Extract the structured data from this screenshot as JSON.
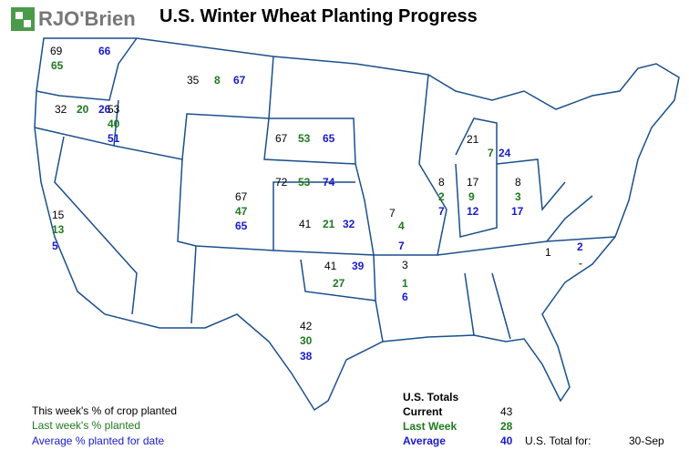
{
  "header": {
    "logo": "RJO'Brien",
    "title": "U.S. Winter Wheat Planting Progress"
  },
  "states": [
    {
      "current": 69,
      "last_week": 65,
      "average": 66
    },
    {
      "current": 32,
      "last_week": 20,
      "average": 26
    },
    {
      "current": 53,
      "last_week": 40,
      "average": 51
    },
    {
      "current": 35,
      "last_week": 8,
      "average": 67
    },
    {
      "current": 67,
      "last_week": 53,
      "average": 65
    },
    {
      "current": 72,
      "last_week": 53,
      "average": 74
    },
    {
      "current": 67,
      "last_week": 47,
      "average": 65
    },
    {
      "current": 41,
      "last_week": 21,
      "average": 32
    },
    {
      "current": 41,
      "last_week": 27,
      "average": 39
    },
    {
      "current": 42,
      "last_week": 30,
      "average": 38
    },
    {
      "current": 15,
      "last_week": 13,
      "average": 5
    },
    {
      "current": 7,
      "last_week": 4,
      "average": 7
    },
    {
      "current": 3,
      "last_week": 1,
      "average": 6
    },
    {
      "current": 8,
      "last_week": 2,
      "average": 7
    },
    {
      "current": 17,
      "last_week": 9,
      "average": 12
    },
    {
      "current": 8,
      "last_week": 3,
      "average": 17
    },
    {
      "current": 21,
      "last_week": 7,
      "average": 24
    },
    {
      "current": 1,
      "last_week": "-",
      "average": 2
    }
  ],
  "legend": {
    "current": "This week's % of crop planted",
    "last_week": "Last week's % planted",
    "average": "Average % planted for date"
  },
  "totals": {
    "title": "U.S. Totals",
    "current_label": "Current",
    "current": 43,
    "last_week_label": "Last Week",
    "last_week": 28,
    "average_label": "Average",
    "average": 40,
    "date_label": "U.S. Total for:",
    "date": "30-Sep"
  }
}
